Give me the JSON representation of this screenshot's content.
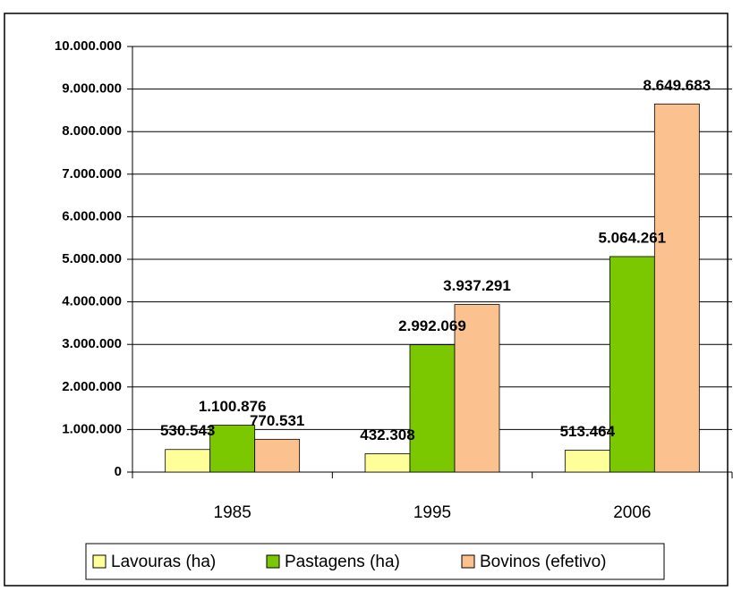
{
  "chart_data": {
    "type": "bar",
    "categories": [
      "1985",
      "1995",
      "2006"
    ],
    "series": [
      {
        "name": "Lavouras (ha)",
        "color": "#ffff99",
        "values": [
          530543,
          432308,
          513464
        ],
        "value_labels": [
          "530.543",
          "432.308",
          "513.464"
        ]
      },
      {
        "name": "Pastagens (ha)",
        "color": "#7cc800",
        "values": [
          1100876,
          2992069,
          5064261
        ],
        "value_labels": [
          "1.100.876",
          "2.992.069",
          "5.064.261"
        ]
      },
      {
        "name": "Bovinos (efetivo)",
        "color": "#fbc28f",
        "values": [
          770531,
          3937291,
          8649683
        ],
        "value_labels": [
          "770.531",
          "3.937.291",
          "8.649.683"
        ]
      }
    ],
    "ylim": [
      0,
      10000000
    ],
    "yticks": [
      0,
      {
        "value": 1000000,
        "label": "1.000.000"
      },
      {
        "value": 2000000,
        "label": "2.000.000"
      },
      {
        "value": 3000000,
        "label": "3.000.000"
      },
      {
        "value": 4000000,
        "label": "4.000.000"
      },
      {
        "value": 5000000,
        "label": "5.000.000"
      },
      {
        "value": 6000000,
        "label": "6.000.000"
      },
      {
        "value": 7000000,
        "label": "7.000.000"
      },
      {
        "value": 8000000,
        "label": "8.000.000"
      },
      {
        "value": 9000000,
        "label": "9.000.000"
      },
      {
        "value": 10000000,
        "label": "10.000.000"
      }
    ],
    "grid": true,
    "legend": "bottom"
  }
}
